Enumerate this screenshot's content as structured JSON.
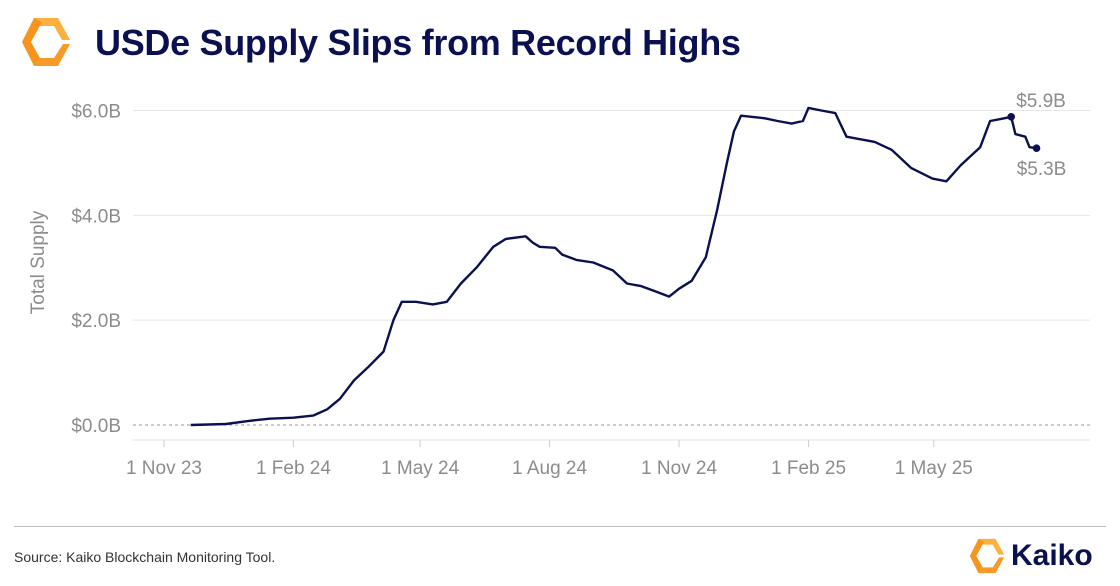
{
  "header": {
    "title": "USDe Supply Slips from Record Highs",
    "logo_icon": "kaiko-hexagon-logo-icon"
  },
  "footer": {
    "source": "Source: Kaiko Blockchain Monitoring Tool.",
    "brand_name": "Kaiko",
    "brand_icon": "kaiko-hexagon-logo-icon"
  },
  "colors": {
    "line": "#0b1150",
    "title": "#0b1150",
    "axis_text": "#8c8c8c",
    "logo_orange": "#f7941d",
    "logo_yellow": "#fbb040"
  },
  "chart_data": {
    "type": "line",
    "title": "USDe Supply Slips from Record Highs",
    "ylabel": "Total Supply",
    "xlabel": "",
    "ylim": [
      0,
      6.2
    ],
    "xlim": [
      "2023-10-10",
      "2025-08-20"
    ],
    "grid": true,
    "y_ticks": [
      0,
      2,
      4,
      6
    ],
    "y_tick_labels": [
      "$0.0B",
      "$2.0B",
      "$4.0B",
      "$6.0B"
    ],
    "x_ticks": [
      "2023-11-01",
      "2024-02-01",
      "2024-05-01",
      "2024-08-01",
      "2024-11-01",
      "2025-02-01",
      "2025-05-01"
    ],
    "x_tick_labels": [
      "1 Nov 23",
      "1 Feb 24",
      "1 May 24",
      "1 Aug 24",
      "1 Nov 24",
      "1 Feb 25",
      "1 May 25"
    ],
    "series": [
      {
        "points": [
          [
            "2023-11-20",
            0.0
          ],
          [
            "2023-12-15",
            0.02
          ],
          [
            "2024-01-01",
            0.08
          ],
          [
            "2024-01-15",
            0.12
          ],
          [
            "2024-02-01",
            0.14
          ],
          [
            "2024-02-15",
            0.18
          ],
          [
            "2024-02-25",
            0.3
          ],
          [
            "2024-03-05",
            0.5
          ],
          [
            "2024-03-15",
            0.85
          ],
          [
            "2024-03-25",
            1.1
          ],
          [
            "2024-04-05",
            1.4
          ],
          [
            "2024-04-12",
            2.0
          ],
          [
            "2024-04-18",
            2.35
          ],
          [
            "2024-04-28",
            2.35
          ],
          [
            "2024-05-10",
            2.3
          ],
          [
            "2024-05-20",
            2.35
          ],
          [
            "2024-05-30",
            2.7
          ],
          [
            "2024-06-10",
            3.0
          ],
          [
            "2024-06-22",
            3.4
          ],
          [
            "2024-07-01",
            3.55
          ],
          [
            "2024-07-15",
            3.6
          ],
          [
            "2024-07-20",
            3.48
          ],
          [
            "2024-07-25",
            3.4
          ],
          [
            "2024-08-05",
            3.38
          ],
          [
            "2024-08-10",
            3.25
          ],
          [
            "2024-08-20",
            3.15
          ],
          [
            "2024-09-01",
            3.1
          ],
          [
            "2024-09-15",
            2.95
          ],
          [
            "2024-09-25",
            2.7
          ],
          [
            "2024-10-05",
            2.65
          ],
          [
            "2024-10-15",
            2.55
          ],
          [
            "2024-10-25",
            2.45
          ],
          [
            "2024-11-01",
            2.6
          ],
          [
            "2024-11-10",
            2.75
          ],
          [
            "2024-11-20",
            3.2
          ],
          [
            "2024-11-28",
            4.1
          ],
          [
            "2024-12-05",
            5.0
          ],
          [
            "2024-12-10",
            5.6
          ],
          [
            "2024-12-15",
            5.9
          ],
          [
            "2025-01-01",
            5.85
          ],
          [
            "2025-01-10",
            5.8
          ],
          [
            "2025-01-20",
            5.75
          ],
          [
            "2025-01-28",
            5.8
          ],
          [
            "2025-02-01",
            6.05
          ],
          [
            "2025-02-10",
            6.0
          ],
          [
            "2025-02-20",
            5.95
          ],
          [
            "2025-02-28",
            5.5
          ],
          [
            "2025-03-10",
            5.45
          ],
          [
            "2025-03-20",
            5.4
          ],
          [
            "2025-04-01",
            5.25
          ],
          [
            "2025-04-15",
            4.9
          ],
          [
            "2025-04-30",
            4.7
          ],
          [
            "2025-05-10",
            4.65
          ],
          [
            "2025-05-20",
            4.95
          ],
          [
            "2025-05-28",
            5.15
          ],
          [
            "2025-06-03",
            5.3
          ],
          [
            "2025-06-10",
            5.8
          ],
          [
            "2025-06-20",
            5.85
          ],
          [
            "2025-06-25",
            5.88
          ],
          [
            "2025-06-28",
            5.55
          ],
          [
            "2025-07-05",
            5.5
          ],
          [
            "2025-07-08",
            5.3
          ],
          [
            "2025-07-13",
            5.28
          ]
        ]
      }
    ],
    "annotations": [
      {
        "label": "$5.9B",
        "x": "2025-06-25",
        "y": 5.88,
        "position": "above"
      },
      {
        "label": "$5.3B",
        "x": "2025-07-13",
        "y": 5.28,
        "position": "below"
      }
    ]
  }
}
